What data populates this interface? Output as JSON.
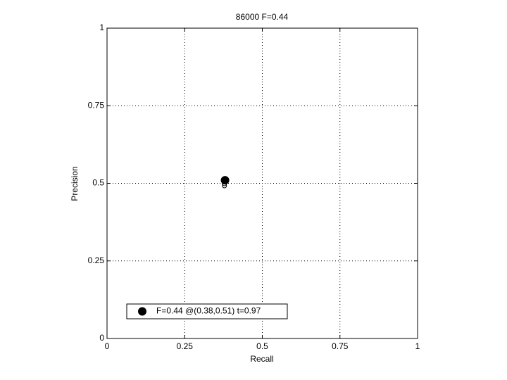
{
  "chart_data": {
    "type": "scatter",
    "title": "86000 F=0.44",
    "x_label": "Recall",
    "y_label": "Precision",
    "xlim": [
      0,
      1
    ],
    "ylim": [
      0,
      1
    ],
    "xticks": [
      0,
      0.25,
      0.5,
      0.75,
      1
    ],
    "yticks": [
      0,
      0.25,
      0.5,
      0.75,
      1
    ],
    "grid": true,
    "legend_position": "lower left",
    "series": [
      {
        "name": "F=0.44 @(0.38,0.51) t=0.97",
        "color": "#000000",
        "marker": "filled",
        "x": [
          0.38
        ],
        "values": [
          0.51
        ]
      },
      {
        "color": "#000000",
        "marker": "open",
        "x": [
          0.378,
          0.378
        ],
        "values": [
          0.492,
          0.499
        ]
      }
    ]
  }
}
